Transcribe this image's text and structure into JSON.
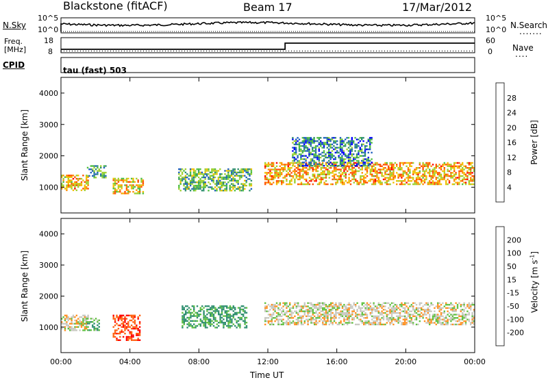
{
  "header": {
    "station": "Blackstone (fitACF)",
    "beam": "Beam 17",
    "date": "17/Mar/2012"
  },
  "top_panels": {
    "nsky_label": "N.Sky",
    "nsearch_label": "N.Search",
    "freq_label_1": "Freq.",
    "freq_label_2": "[MHz]",
    "nave_label": "Nave",
    "cpid_label": "CPID",
    "nsky_ticks": [
      "10^5",
      "10^0"
    ],
    "nsearch_ticks": [
      "10^5",
      "10^0"
    ],
    "freq_ticks": [
      "18",
      "8"
    ],
    "nave_ticks": [
      "60",
      "0"
    ],
    "cpid_text": "tau (fast) 503"
  },
  "colors": {
    "power_scale": [
      "#0000ff",
      "#1f5fbf",
      "#2f8f6f",
      "#4fbf3f",
      "#9fd02f",
      "#f0c000",
      "#ff9000",
      "#ff5000",
      "#ff0000"
    ],
    "velocity_scale": [
      "#0000ff",
      "#2050c0",
      "#2f8f6f",
      "#60c040",
      "#c8c8c0",
      "#ff9020",
      "#ff6010",
      "#ff0000"
    ]
  },
  "chart_data": [
    {
      "type": "heatmap",
      "name": "power",
      "xlabel": "Time UT",
      "ylabel": "Slant Range [km]",
      "x_ticks": [
        "00:00",
        "04:00",
        "08:00",
        "12:00",
        "16:00",
        "20:00",
        "00:00"
      ],
      "y_ticks": [
        "1000",
        "2000",
        "3000",
        "4000"
      ],
      "colorbar_label": "Power [dB]",
      "colorbar_ticks": [
        "28",
        "24",
        "20",
        "16",
        "12",
        "8",
        "4"
      ],
      "xlim_hours": [
        0,
        24
      ],
      "ylim_km": [
        180,
        4500
      ],
      "echo_regions": [
        {
          "t_start": 0.0,
          "t_end": 1.6,
          "r_min": 900,
          "r_max": 1400,
          "power_db": 22
        },
        {
          "t_start": 1.5,
          "t_end": 2.6,
          "r_min": 1300,
          "r_max": 1700,
          "power_db": 12
        },
        {
          "t_start": 3.0,
          "t_end": 4.8,
          "r_min": 800,
          "r_max": 1300,
          "power_db": 20
        },
        {
          "t_start": 6.8,
          "t_end": 11.0,
          "r_min": 900,
          "r_max": 1600,
          "power_db": 14
        },
        {
          "t_start": 11.8,
          "t_end": 24.0,
          "r_min": 1100,
          "r_max": 1800,
          "power_db": 22
        },
        {
          "t_start": 13.4,
          "t_end": 18.0,
          "r_min": 1700,
          "r_max": 2600,
          "power_db": 10
        }
      ]
    },
    {
      "type": "heatmap",
      "name": "velocity",
      "xlabel": "Time UT",
      "ylabel": "Slant Range [km]",
      "x_ticks": [
        "00:00",
        "04:00",
        "08:00",
        "12:00",
        "16:00",
        "20:00",
        "00:00"
      ],
      "y_ticks": [
        "1000",
        "2000",
        "3000",
        "4000"
      ],
      "colorbar_label": "Velocity [m s-1]",
      "colorbar_ticks": [
        "200",
        "100",
        "50",
        "15",
        "-15",
        "-50",
        "-100",
        "-200"
      ],
      "xlim_hours": [
        0,
        24
      ],
      "ylim_km": [
        180,
        4500
      ],
      "echo_regions": [
        {
          "t_start": 0.0,
          "t_end": 1.6,
          "r_min": 900,
          "r_max": 1400,
          "velocity": 0
        },
        {
          "t_start": 1.5,
          "t_end": 2.2,
          "r_min": 900,
          "r_max": 1300,
          "velocity": 40
        },
        {
          "t_start": 3.0,
          "t_end": 4.6,
          "r_min": 600,
          "r_max": 1400,
          "velocity": -90
        },
        {
          "t_start": 7.0,
          "t_end": 10.8,
          "r_min": 1000,
          "r_max": 1700,
          "velocity": 60
        },
        {
          "t_start": 11.8,
          "t_end": 24.0,
          "r_min": 1100,
          "r_max": 1800,
          "velocity": 0
        }
      ]
    }
  ]
}
